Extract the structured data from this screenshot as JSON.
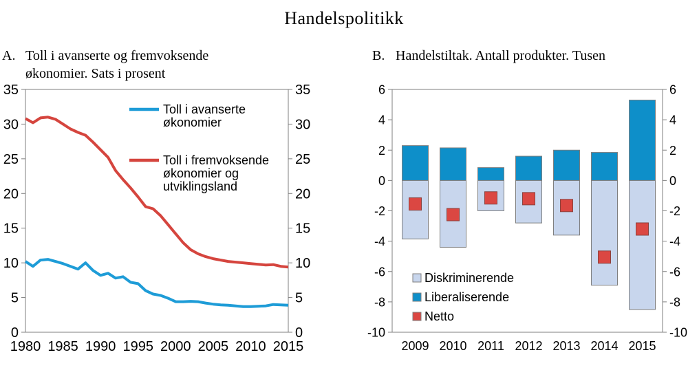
{
  "title": "Handelspolitikk",
  "panel_a": {
    "label": "A.",
    "title_lines": [
      "Toll i avanserte og fremvoksende",
      "økonomier. Sats i prosent"
    ]
  },
  "panel_b": {
    "label": "B.",
    "title_lines": [
      "Handelstiltak. Antall produkter. Tusen"
    ]
  },
  "colors": {
    "advanced_line": "#1E9CD7",
    "emerging_line": "#D5453E",
    "liberalising_bar": "#0E8FC9",
    "discriminating_bar": "#C8D6ED",
    "net_marker": "#DB4742",
    "axis": "#7F7F7F",
    "text": "#000000",
    "background": "#FFFFFF"
  },
  "chart_data": [
    {
      "type": "line",
      "panel": "A",
      "title": "Toll i avanserte og fremvoksende økonomier. Sats i prosent",
      "xlabel": "",
      "ylabel": "Sats i prosent",
      "x": [
        1980,
        1981,
        1982,
        1983,
        1984,
        1985,
        1986,
        1987,
        1988,
        1989,
        1990,
        1991,
        1992,
        1993,
        1994,
        1995,
        1996,
        1997,
        1998,
        1999,
        2000,
        2001,
        2002,
        2003,
        2004,
        2005,
        2006,
        2007,
        2008,
        2009,
        2010,
        2011,
        2012,
        2013,
        2014,
        2015
      ],
      "series": [
        {
          "id": "avanserte",
          "name": "Toll i avanserte økonomier",
          "label_lines": [
            "Toll i avanserte",
            "økonomier"
          ],
          "color": "#1E9CD7",
          "values": [
            10.2,
            9.5,
            10.4,
            10.5,
            10.2,
            9.9,
            9.5,
            9.1,
            10.0,
            8.9,
            8.2,
            8.5,
            7.8,
            8.0,
            7.2,
            7.0,
            6.0,
            5.5,
            5.3,
            4.9,
            4.4,
            4.4,
            4.45,
            4.4,
            4.2,
            4.05,
            3.95,
            3.9,
            3.8,
            3.7,
            3.7,
            3.75,
            3.8,
            4.0,
            3.95,
            3.9
          ]
        },
        {
          "id": "fremvoksende",
          "name": "Toll i fremvoksende økonomier og utviklingsland",
          "label_lines": [
            "Toll i fremvoksende",
            "økonomier og",
            "utviklingsland"
          ],
          "color": "#D5453E",
          "values": [
            30.8,
            30.2,
            30.9,
            31.0,
            30.7,
            30.0,
            29.3,
            28.8,
            28.4,
            27.4,
            26.3,
            25.2,
            23.3,
            22.0,
            20.8,
            19.5,
            18.1,
            17.8,
            16.8,
            15.5,
            14.2,
            12.9,
            11.9,
            11.3,
            10.9,
            10.6,
            10.4,
            10.2,
            10.1,
            10.0,
            9.9,
            9.8,
            9.7,
            9.75,
            9.5,
            9.4
          ]
        }
      ],
      "ylim": [
        0,
        35
      ],
      "yticks": [
        0,
        5,
        10,
        15,
        20,
        25,
        30,
        35
      ],
      "xticks": [
        1980,
        1985,
        1990,
        1995,
        2000,
        2005,
        2010,
        2015
      ],
      "y_axis_both_sides": true,
      "grid": false,
      "legend_position": "inside upper area"
    },
    {
      "type": "bar",
      "panel": "B",
      "title": "Handelstiltak. Antall produkter. Tusen",
      "xlabel": "",
      "ylabel": "Antall produkter, tusen",
      "categories": [
        "2009",
        "2010",
        "2011",
        "2012",
        "2013",
        "2014",
        "2015"
      ],
      "series": [
        {
          "id": "diskriminerende",
          "name": "Diskriminerende",
          "style": "bar",
          "color": "#C8D6ED",
          "values": [
            -3.85,
            -4.4,
            -2.0,
            -2.8,
            -3.6,
            -6.9,
            -8.5
          ]
        },
        {
          "id": "liberaliserende",
          "name": "Liberaliserende",
          "style": "bar",
          "color": "#0E8FC9",
          "values": [
            2.3,
            2.15,
            0.85,
            1.6,
            2.0,
            1.85,
            5.3
          ]
        },
        {
          "id": "netto",
          "name": "Netto",
          "style": "square-marker",
          "color": "#DB4742",
          "values": [
            -1.55,
            -2.25,
            -1.15,
            -1.2,
            -1.65,
            -5.05,
            -3.2
          ]
        }
      ],
      "ylim": [
        -10,
        6
      ],
      "yticks": [
        6,
        4,
        2,
        0,
        -2,
        -4,
        -6,
        -8,
        -10
      ],
      "y_axis_both_sides": true,
      "grid": false,
      "legend_position": "inside lower-left"
    }
  ]
}
